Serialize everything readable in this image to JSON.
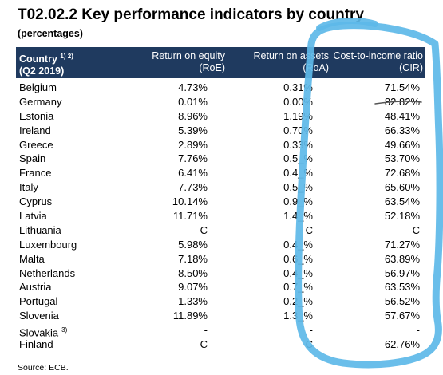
{
  "title": "T02.02.2 Key performance indicators by country",
  "subtitle": "(percentages)",
  "header": {
    "country_line1": "Country",
    "country_sup": "1) 2)",
    "country_line2": "(Q2 2019)",
    "roe_line1": "Return on equity",
    "roe_line2": "(RoE)",
    "roa_line1": "Return on assets",
    "roa_line2": "(RoA)",
    "cir_line1": "Cost-to-income ratio",
    "cir_line2": "(CIR)"
  },
  "rows": [
    {
      "country": "Belgium",
      "sup": "",
      "roe": "4.73%",
      "roa": "0.31%",
      "cir": "71.54%"
    },
    {
      "country": "Germany",
      "sup": "",
      "roe": "0.01%",
      "roa": "0.00%",
      "cir": "82.82%"
    },
    {
      "country": "Estonia",
      "sup": "",
      "roe": "8.96%",
      "roa": "1.19%",
      "cir": "48.41%"
    },
    {
      "country": "Ireland",
      "sup": "",
      "roe": "5.39%",
      "roa": "0.70%",
      "cir": "66.33%"
    },
    {
      "country": "Greece",
      "sup": "",
      "roe": "2.89%",
      "roa": "0.33%",
      "cir": "49.66%"
    },
    {
      "country": "Spain",
      "sup": "",
      "roe": "7.76%",
      "roa": "0.5_%",
      "cir": "53.70%"
    },
    {
      "country": "France",
      "sup": "",
      "roe": "6.41%",
      "roa": "0.4_%",
      "cir": "72.68%"
    },
    {
      "country": "Italy",
      "sup": "",
      "roe": "7.73%",
      "roa": "0.5_%",
      "cir": "65.60%"
    },
    {
      "country": "Cyprus",
      "sup": "",
      "roe": "10.14%",
      "roa": "0.9_%",
      "cir": "63.54%"
    },
    {
      "country": "Latvia",
      "sup": "",
      "roe": "11.71%",
      "roa": "1.4_%",
      "cir": "52.18%"
    },
    {
      "country": "Lithuania",
      "sup": "",
      "roe": "C",
      "roa": "C",
      "cir": "C"
    },
    {
      "country": "Luxembourg",
      "sup": "",
      "roe": "5.98%",
      "roa": "0.4_%",
      "cir": "71.27%"
    },
    {
      "country": "Malta",
      "sup": "",
      "roe": "7.18%",
      "roa": "0.6_%",
      "cir": "63.89%"
    },
    {
      "country": "Netherlands",
      "sup": "",
      "roe": "8.50%",
      "roa": "0.4_%",
      "cir": "56.97%"
    },
    {
      "country": "Austria",
      "sup": "",
      "roe": "9.07%",
      "roa": "0.7_%",
      "cir": "63.53%"
    },
    {
      "country": "Portugal",
      "sup": "",
      "roe": "1.33%",
      "roa": "0.2_%",
      "cir": "56.52%"
    },
    {
      "country": "Slovenia",
      "sup": "",
      "roe": "11.89%",
      "roa": "1.3_%",
      "cir": "57.67%"
    },
    {
      "country": "Slovakia",
      "sup": "3)",
      "roe": "-",
      "roa": "-",
      "cir": "-"
    },
    {
      "country": "Finland",
      "sup": "",
      "roe": "C",
      "roa": "C",
      "cir": "62.76%"
    }
  ],
  "source": "Source: ECB.",
  "colors": {
    "header_bg": "#1f3a5f",
    "scribble": "#5db8e8"
  }
}
